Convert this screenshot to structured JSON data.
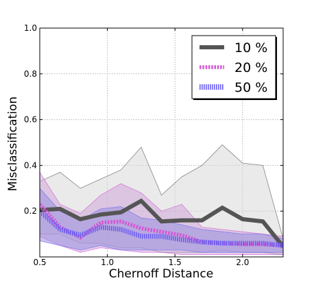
{
  "chart_data": {
    "type": "line",
    "title": "",
    "xlabel": "Chernoff Distance",
    "ylabel": "Misclassification",
    "xlim": [
      0.5,
      2.3
    ],
    "ylim": [
      0.0,
      1.0
    ],
    "xticks": [
      "0.5",
      "1.0",
      "1.5",
      "2.0"
    ],
    "yticks": [
      "0.2",
      "0.4",
      "0.6",
      "0.8",
      "1.0"
    ],
    "grid": true,
    "legend_position": "top-right",
    "x": [
      0.5,
      0.65,
      0.8,
      0.95,
      1.1,
      1.25,
      1.4,
      1.55,
      1.7,
      1.85,
      2.0,
      2.15,
      2.3
    ],
    "series": [
      {
        "name": "10 %",
        "color": "#555555",
        "line_style": "solid",
        "values": [
          0.205,
          0.21,
          0.165,
          0.185,
          0.195,
          0.245,
          0.155,
          0.16,
          0.16,
          0.215,
          0.165,
          0.155,
          0.045
        ],
        "upper": [
          0.33,
          0.37,
          0.3,
          0.34,
          0.38,
          0.48,
          0.27,
          0.35,
          0.4,
          0.49,
          0.41,
          0.4,
          0.08
        ],
        "lower": [
          0.1,
          0.1,
          0.06,
          0.06,
          0.04,
          0.04,
          0.02,
          0.02,
          0.02,
          0.03,
          0.02,
          0.02,
          0.01
        ],
        "band_color": "#d9d9d9"
      },
      {
        "name": "20 %",
        "color": "#d455d4",
        "line_style": "dotted",
        "values": [
          0.23,
          0.13,
          0.085,
          0.15,
          0.155,
          0.125,
          0.11,
          0.095,
          0.065,
          0.06,
          0.055,
          0.055,
          0.05
        ],
        "upper": [
          0.37,
          0.23,
          0.19,
          0.27,
          0.32,
          0.28,
          0.2,
          0.23,
          0.13,
          0.12,
          0.11,
          0.1,
          0.09
        ],
        "lower": [
          0.09,
          0.05,
          0.02,
          0.04,
          0.03,
          0.02,
          0.02,
          0.01,
          0.01,
          0.01,
          0.01,
          0.01,
          0.01
        ],
        "band_color": "#cfa6d8"
      },
      {
        "name": "50 %",
        "color": "#6666ee",
        "line_style": "hatched",
        "values": [
          0.2,
          0.12,
          0.095,
          0.13,
          0.12,
          0.09,
          0.09,
          0.075,
          0.065,
          0.06,
          0.06,
          0.06,
          0.05
        ],
        "upper": [
          0.3,
          0.2,
          0.16,
          0.21,
          0.22,
          0.17,
          0.16,
          0.14,
          0.12,
          0.11,
          0.1,
          0.1,
          0.08
        ],
        "lower": [
          0.07,
          0.05,
          0.03,
          0.05,
          0.03,
          0.03,
          0.03,
          0.03,
          0.02,
          0.02,
          0.02,
          0.02,
          0.02
        ],
        "band_color": "#9b8fe0"
      }
    ]
  }
}
